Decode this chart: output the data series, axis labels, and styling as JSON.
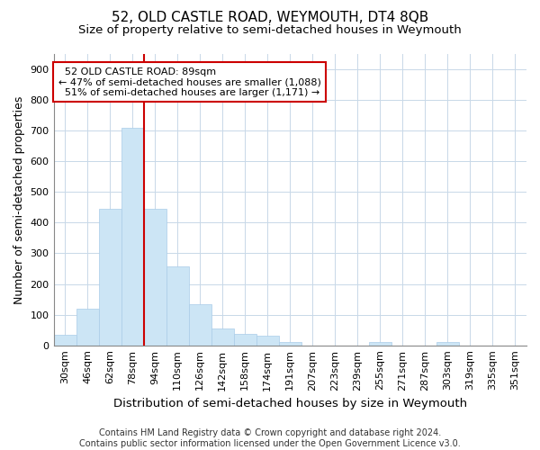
{
  "title": "52, OLD CASTLE ROAD, WEYMOUTH, DT4 8QB",
  "subtitle": "Size of property relative to semi-detached houses in Weymouth",
  "xlabel": "Distribution of semi-detached houses by size in Weymouth",
  "ylabel": "Number of semi-detached properties",
  "categories": [
    "30sqm",
    "46sqm",
    "62sqm",
    "78sqm",
    "94sqm",
    "110sqm",
    "126sqm",
    "142sqm",
    "158sqm",
    "174sqm",
    "191sqm",
    "207sqm",
    "223sqm",
    "239sqm",
    "255sqm",
    "271sqm",
    "287sqm",
    "303sqm",
    "319sqm",
    "335sqm",
    "351sqm"
  ],
  "values": [
    35,
    120,
    445,
    710,
    445,
    258,
    135,
    55,
    38,
    32,
    12,
    0,
    0,
    0,
    12,
    0,
    0,
    12,
    0,
    0,
    0
  ],
  "bar_color": "#cce5f5",
  "bar_edge_color": "#aacce8",
  "vline_x_index": 4,
  "marker_label": "52 OLD CASTLE ROAD: 89sqm",
  "pct_smaller": 47,
  "pct_smaller_count": 1088,
  "pct_larger": 51,
  "pct_larger_count": 1171,
  "vline_color": "#cc0000",
  "annotation_box_color": "#cc0000",
  "ylim": [
    0,
    950
  ],
  "yticks": [
    0,
    100,
    200,
    300,
    400,
    500,
    600,
    700,
    800,
    900
  ],
  "footer_line1": "Contains HM Land Registry data © Crown copyright and database right 2024.",
  "footer_line2": "Contains public sector information licensed under the Open Government Licence v3.0.",
  "background_color": "#ffffff",
  "grid_color": "#c8d8e8",
  "title_fontsize": 11,
  "subtitle_fontsize": 9.5,
  "axis_label_fontsize": 9,
  "tick_fontsize": 8,
  "annotation_fontsize": 8,
  "footer_fontsize": 7
}
